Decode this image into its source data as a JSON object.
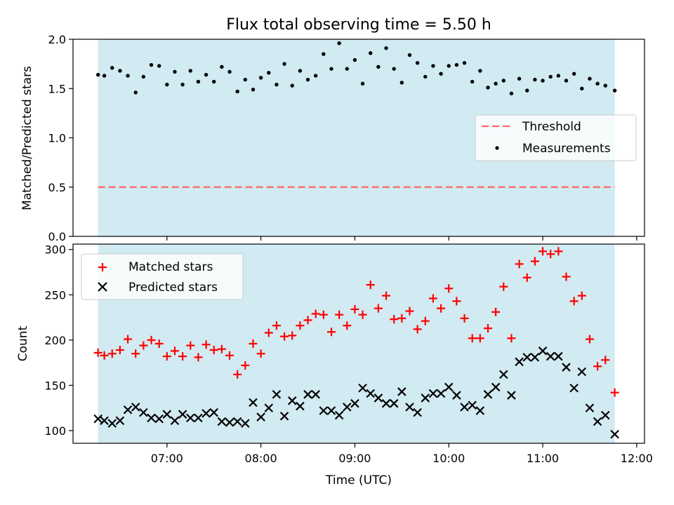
{
  "chart_data": [
    {
      "type": "scatter",
      "title": "Flux total observing time = 5.50 h",
      "ylabel": "Matched/Predicted stars",
      "xlabel": "",
      "ylim": [
        0,
        2.0
      ],
      "yticks": [
        "0.0",
        "0.5",
        "1.0",
        "1.5",
        "2.0"
      ],
      "shaded_span": [
        "06:16",
        "11:46"
      ],
      "shade_color": "#add8e6",
      "legend_position": "center-right",
      "threshold": {
        "name": "Threshold",
        "value": 0.5,
        "color": "#ff6666"
      },
      "series": [
        {
          "name": "Measurements",
          "color": "#000000",
          "x": [
            "06:16",
            "06:20",
            "06:25",
            "06:30",
            "06:35",
            "06:40",
            "06:45",
            "06:50",
            "06:55",
            "07:00",
            "07:05",
            "07:10",
            "07:15",
            "07:20",
            "07:25",
            "07:30",
            "07:35",
            "07:40",
            "07:45",
            "07:50",
            "07:55",
            "08:00",
            "08:05",
            "08:10",
            "08:15",
            "08:20",
            "08:25",
            "08:30",
            "08:35",
            "08:40",
            "08:45",
            "08:50",
            "08:55",
            "09:00",
            "09:05",
            "09:10",
            "09:15",
            "09:20",
            "09:25",
            "09:30",
            "09:35",
            "09:40",
            "09:45",
            "09:50",
            "09:55",
            "10:00",
            "10:05",
            "10:10",
            "10:15",
            "10:20",
            "10:25",
            "10:30",
            "10:35",
            "10:40",
            "10:45",
            "10:50",
            "10:55",
            "11:00",
            "11:05",
            "11:10",
            "11:15",
            "11:20",
            "11:25",
            "11:30",
            "11:35",
            "11:40",
            "11:46"
          ],
          "y": [
            1.64,
            1.63,
            1.71,
            1.68,
            1.63,
            1.46,
            1.62,
            1.74,
            1.73,
            1.54,
            1.67,
            1.54,
            1.68,
            1.57,
            1.64,
            1.57,
            1.72,
            1.67,
            1.47,
            1.59,
            1.49,
            1.61,
            1.66,
            1.54,
            1.75,
            1.53,
            1.68,
            1.59,
            1.63,
            1.85,
            1.7,
            1.96,
            1.7,
            1.79,
            1.55,
            1.86,
            1.72,
            1.91,
            1.7,
            1.56,
            1.84,
            1.76,
            1.62,
            1.73,
            1.65,
            1.73,
            1.74,
            1.76,
            1.57,
            1.68,
            1.51,
            1.55,
            1.58,
            1.45,
            1.6,
            1.48,
            1.59,
            1.58,
            1.62,
            1.63,
            1.58,
            1.65,
            1.5,
            1.6,
            1.55,
            1.53,
            1.48
          ]
        }
      ]
    },
    {
      "type": "scatter",
      "title": "",
      "ylabel": "Count",
      "xlabel": "Time (UTC)",
      "ylim": [
        86,
        306
      ],
      "yticks": [
        "100",
        "150",
        "200",
        "250",
        "300"
      ],
      "xlim": [
        "06:00",
        "12:05"
      ],
      "xticks": [
        "07:00",
        "08:00",
        "09:00",
        "10:00",
        "11:00",
        "12:00"
      ],
      "shaded_span": [
        "06:16",
        "11:46"
      ],
      "shade_color": "#add8e6",
      "legend_position": "upper-left",
      "series": [
        {
          "name": "Matched stars",
          "marker": "+",
          "color": "#ff0000",
          "x": [
            "06:16",
            "06:20",
            "06:25",
            "06:30",
            "06:35",
            "06:40",
            "06:45",
            "06:50",
            "06:55",
            "07:00",
            "07:05",
            "07:10",
            "07:15",
            "07:20",
            "07:25",
            "07:30",
            "07:35",
            "07:40",
            "07:45",
            "07:50",
            "07:55",
            "08:00",
            "08:05",
            "08:10",
            "08:15",
            "08:20",
            "08:25",
            "08:30",
            "08:35",
            "08:40",
            "08:45",
            "08:50",
            "08:55",
            "09:00",
            "09:05",
            "09:10",
            "09:15",
            "09:20",
            "09:25",
            "09:30",
            "09:35",
            "09:40",
            "09:45",
            "09:50",
            "09:55",
            "10:00",
            "10:05",
            "10:10",
            "10:15",
            "10:20",
            "10:25",
            "10:30",
            "10:35",
            "10:40",
            "10:45",
            "10:50",
            "10:55",
            "11:00",
            "11:05",
            "11:10",
            "11:15",
            "11:20",
            "11:25",
            "11:30",
            "11:35",
            "11:40",
            "11:46"
          ],
          "y": [
            186,
            183,
            185,
            189,
            201,
            185,
            194,
            200,
            196,
            182,
            188,
            182,
            194,
            181,
            195,
            189,
            190,
            183,
            162,
            172,
            196,
            185,
            208,
            216,
            204,
            205,
            216,
            222,
            229,
            228,
            209,
            228,
            216,
            234,
            228,
            261,
            235,
            249,
            223,
            224,
            232,
            212,
            221,
            246,
            235,
            257,
            243,
            224,
            202,
            202,
            213,
            231,
            259,
            202,
            284,
            269,
            287,
            298,
            295,
            298,
            270,
            243,
            249,
            201,
            171,
            178,
            142
          ]
        },
        {
          "name": "Predicted stars",
          "marker": "x",
          "color": "#000000",
          "x": [
            "06:16",
            "06:20",
            "06:25",
            "06:30",
            "06:35",
            "06:40",
            "06:45",
            "06:50",
            "06:55",
            "07:00",
            "07:05",
            "07:10",
            "07:15",
            "07:20",
            "07:25",
            "07:30",
            "07:35",
            "07:40",
            "07:45",
            "07:50",
            "07:55",
            "08:00",
            "08:05",
            "08:10",
            "08:15",
            "08:20",
            "08:25",
            "08:30",
            "08:35",
            "08:40",
            "08:45",
            "08:50",
            "08:55",
            "09:00",
            "09:05",
            "09:10",
            "09:15",
            "09:20",
            "09:25",
            "09:30",
            "09:35",
            "09:40",
            "09:45",
            "09:50",
            "09:55",
            "10:00",
            "10:05",
            "10:10",
            "10:15",
            "10:20",
            "10:25",
            "10:30",
            "10:35",
            "10:40",
            "10:45",
            "10:50",
            "10:55",
            "11:00",
            "11:05",
            "11:10",
            "11:15",
            "11:20",
            "11:25",
            "11:30",
            "11:35",
            "11:40",
            "11:46"
          ],
          "y": [
            113,
            111,
            108,
            111,
            123,
            126,
            120,
            114,
            113,
            118,
            111,
            118,
            114,
            114,
            119,
            120,
            110,
            109,
            110,
            108,
            131,
            115,
            125,
            140,
            116,
            133,
            127,
            140,
            140,
            122,
            122,
            117,
            126,
            130,
            147,
            141,
            136,
            130,
            130,
            143,
            126,
            120,
            136,
            141,
            141,
            148,
            139,
            126,
            128,
            122,
            140,
            148,
            162,
            139,
            176,
            181,
            181,
            188,
            182,
            182,
            170,
            147,
            165,
            125,
            110,
            117,
            96
          ]
        }
      ]
    }
  ]
}
